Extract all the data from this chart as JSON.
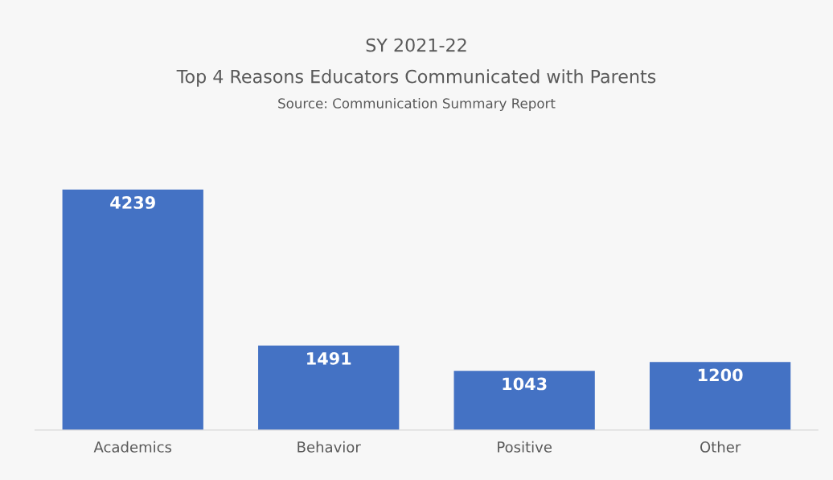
{
  "chart_data": {
    "type": "bar",
    "title": "SY 2021-22",
    "subtitle": "Top 4 Reasons Educators Communicated with Parents",
    "annotations": [
      "Source: Communication Summary Report"
    ],
    "categories": [
      "Academics",
      "Behavior",
      "Positive",
      "Other"
    ],
    "values": [
      4239,
      1491,
      1043,
      1200
    ],
    "color": "#4472c4",
    "data_labels": true,
    "tick_labels": "x",
    "grid": false,
    "legend": false
  }
}
